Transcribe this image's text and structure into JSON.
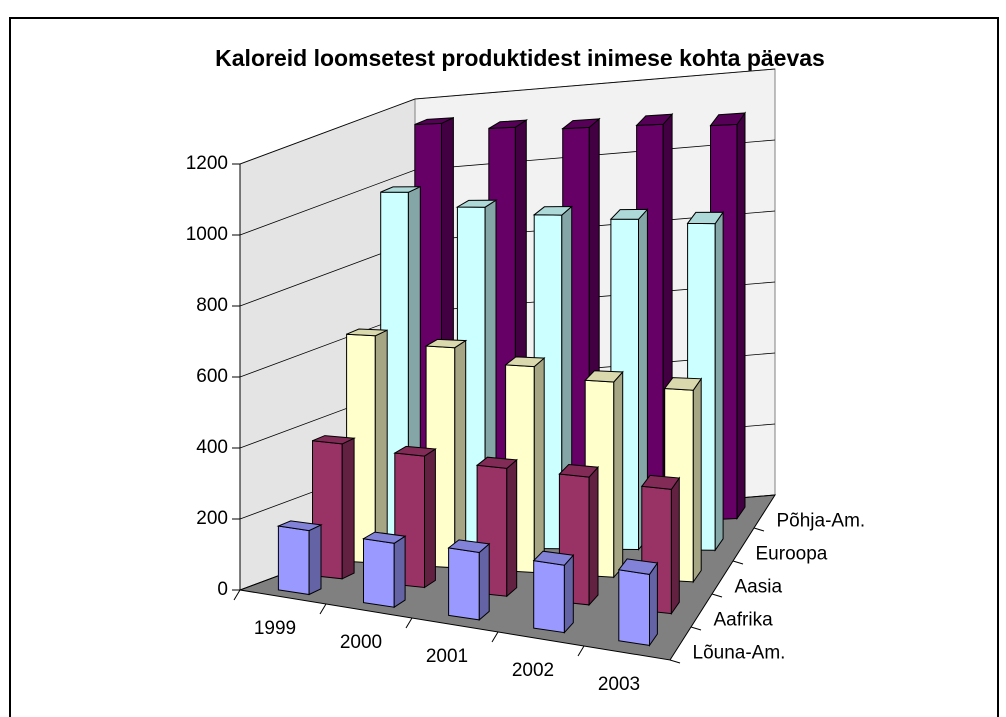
{
  "chart_data": {
    "type": "bar3d",
    "title": "Kaloreid loomsetest produktidest inimese kohta päevas",
    "categories": [
      "1999",
      "2000",
      "2001",
      "2002",
      "2003"
    ],
    "series": [
      {
        "name": "Lõuna-Am.",
        "color": "#9999ff",
        "values": [
          180,
          180,
          190,
          190,
          200
        ]
      },
      {
        "name": "Aafrika",
        "color": "#993366",
        "values": [
          380,
          370,
          360,
          360,
          350
        ]
      },
      {
        "name": "Aasia",
        "color": "#ffffcc",
        "values": [
          640,
          620,
          580,
          550,
          540
        ]
      },
      {
        "name": "Euroopa",
        "color": "#ccffff",
        "values": [
          1000,
          960,
          940,
          930,
          920
        ]
      },
      {
        "name": "Põhja-Am.",
        "color": "#660066",
        "values": [
          1150,
          1130,
          1120,
          1120,
          1110
        ]
      }
    ],
    "ylim": [
      0,
      1200
    ],
    "yticks": [
      0,
      200,
      400,
      600,
      800,
      1000,
      1200
    ],
    "grid": true
  }
}
